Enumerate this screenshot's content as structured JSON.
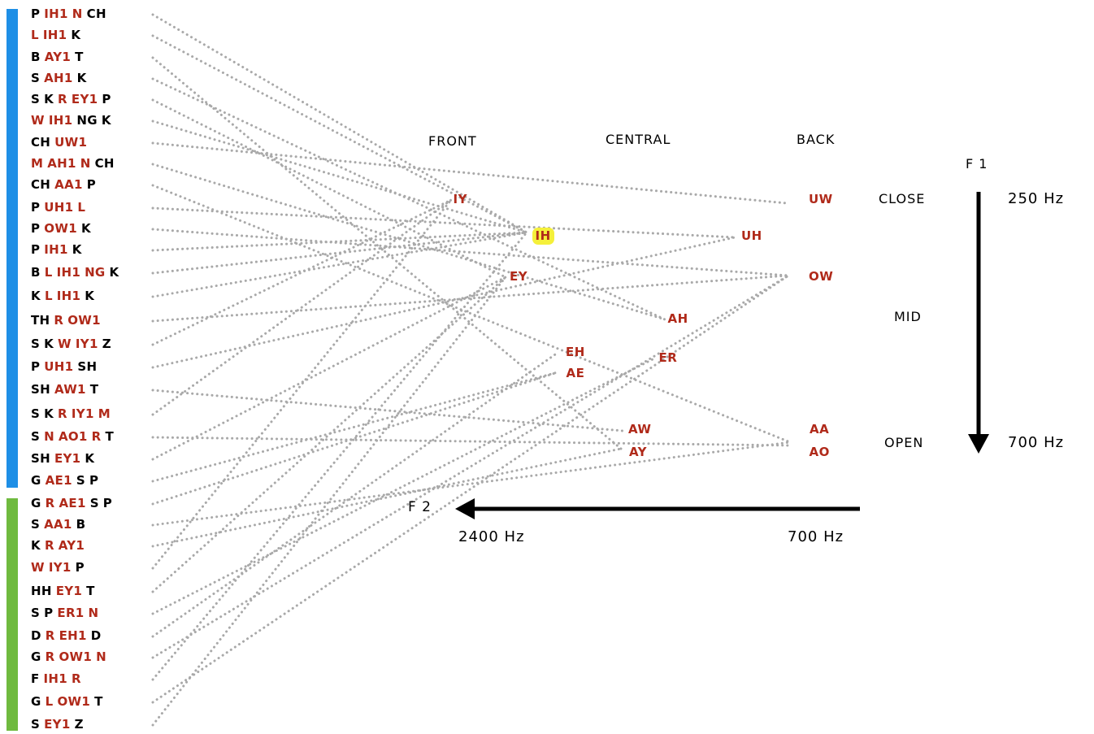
{
  "groups": [
    {
      "name": "blue",
      "color": "#1e8fe6",
      "from": 0,
      "to": 21
    },
    {
      "name": "green",
      "color": "#6fba3f",
      "from": 22,
      "to": 32
    }
  ],
  "words": [
    {
      "tokens": [
        "P",
        "IH1",
        "N",
        "CH"
      ],
      "vowels": [
        1,
        2
      ],
      "target": "IH"
    },
    {
      "tokens": [
        "L",
        "IH1",
        "K"
      ],
      "vowels": [
        0,
        1
      ],
      "target": "IH"
    },
    {
      "tokens": [
        "B",
        "AY1",
        "T"
      ],
      "vowels": [
        1
      ],
      "target": "AY"
    },
    {
      "tokens": [
        "S",
        "AH1",
        "K"
      ],
      "vowels": [
        1
      ],
      "target": "AH"
    },
    {
      "tokens": [
        "S",
        "K",
        "R",
        "EY1",
        "P"
      ],
      "vowels": [
        2,
        3
      ],
      "target": "EY"
    },
    {
      "tokens": [
        "W",
        "IH1",
        "NG",
        "K"
      ],
      "vowels": [
        0,
        1
      ],
      "target": "IH"
    },
    {
      "tokens": [
        "CH",
        "UW1"
      ],
      "vowels": [
        1
      ],
      "target": "UW"
    },
    {
      "tokens": [
        "M",
        "AH1",
        "N",
        "CH"
      ],
      "vowels": [
        0,
        1,
        2
      ],
      "target": "AH"
    },
    {
      "tokens": [
        "CH",
        "AA1",
        "P"
      ],
      "vowels": [
        1
      ],
      "target": "AA"
    },
    {
      "tokens": [
        "P",
        "UH1",
        "L"
      ],
      "vowels": [
        1,
        2
      ],
      "target": "UH"
    },
    {
      "tokens": [
        "P",
        "OW1",
        "K"
      ],
      "vowels": [
        1
      ],
      "target": "OW"
    },
    {
      "tokens": [
        "P",
        "IH1",
        "K"
      ],
      "vowels": [
        1
      ],
      "target": "IH"
    },
    {
      "tokens": [
        "B",
        "L",
        "IH1",
        "NG",
        "K"
      ],
      "vowels": [
        1,
        2,
        3
      ],
      "target": "IH"
    },
    {
      "tokens": [
        "K",
        "L",
        "IH1",
        "K"
      ],
      "vowels": [
        1,
        2
      ],
      "target": "IH"
    },
    {
      "tokens": [
        "TH",
        "R",
        "OW1"
      ],
      "vowels": [
        1,
        2
      ],
      "target": "OW"
    },
    {
      "tokens": [
        "S",
        "K",
        "W",
        "IY1",
        "Z"
      ],
      "vowels": [
        2,
        3
      ],
      "target": "IY"
    },
    {
      "tokens": [
        "P",
        "UH1",
        "SH"
      ],
      "vowels": [
        1
      ],
      "target": "UH"
    },
    {
      "tokens": [
        "SH",
        "AW1",
        "T"
      ],
      "vowels": [
        1
      ],
      "target": "AW"
    },
    {
      "tokens": [
        "S",
        "K",
        "R",
        "IY1",
        "M"
      ],
      "vowels": [
        2,
        3,
        4
      ],
      "target": "IY"
    },
    {
      "tokens": [
        "S",
        "N",
        "AO1",
        "R",
        "T"
      ],
      "vowels": [
        1,
        2,
        3
      ],
      "target": "AO"
    },
    {
      "tokens": [
        "SH",
        "EY1",
        "K"
      ],
      "vowels": [
        1
      ],
      "target": "EY"
    },
    {
      "tokens": [
        "G",
        "AE1",
        "S",
        "P"
      ],
      "vowels": [
        1
      ],
      "target": "AE"
    },
    {
      "tokens": [
        "G",
        "R",
        "AE1",
        "S",
        "P"
      ],
      "vowels": [
        1,
        2
      ],
      "target": "AE"
    },
    {
      "tokens": [
        "S",
        "AA1",
        "B"
      ],
      "vowels": [
        1
      ],
      "target": "AA"
    },
    {
      "tokens": [
        "K",
        "R",
        "AY1"
      ],
      "vowels": [
        1,
        2
      ],
      "target": "AY"
    },
    {
      "tokens": [
        "W",
        "IY1",
        "P"
      ],
      "vowels": [
        0,
        1
      ],
      "target": "IY"
    },
    {
      "tokens": [
        "HH",
        "EY1",
        "T"
      ],
      "vowels": [
        1
      ],
      "target": "EY"
    },
    {
      "tokens": [
        "S",
        "P",
        "ER1",
        "N"
      ],
      "vowels": [
        2,
        3
      ],
      "target": "ER"
    },
    {
      "tokens": [
        "D",
        "R",
        "EH1",
        "D"
      ],
      "vowels": [
        1,
        2
      ],
      "target": "EH"
    },
    {
      "tokens": [
        "G",
        "R",
        "OW1",
        "N"
      ],
      "vowels": [
        1,
        2,
        3
      ],
      "target": "OW"
    },
    {
      "tokens": [
        "F",
        "IH1",
        "R"
      ],
      "vowels": [
        1,
        2
      ],
      "target": "IH"
    },
    {
      "tokens": [
        "G",
        "L",
        "OW1",
        "T"
      ],
      "vowels": [
        1,
        2
      ],
      "target": "OW"
    },
    {
      "tokens": [
        "S",
        "EY1",
        "Z"
      ],
      "vowels": [
        1
      ],
      "target": "EY"
    }
  ],
  "vowels": [
    {
      "label": "IY",
      "highlight": false
    },
    {
      "label": "IH",
      "highlight": true
    },
    {
      "label": "EY",
      "highlight": false
    },
    {
      "label": "EH",
      "highlight": false
    },
    {
      "label": "AE",
      "highlight": false
    },
    {
      "label": "AH",
      "highlight": false
    },
    {
      "label": "ER",
      "highlight": false
    },
    {
      "label": "AW",
      "highlight": false
    },
    {
      "label": "AY",
      "highlight": false
    },
    {
      "label": "UW",
      "highlight": false
    },
    {
      "label": "UH",
      "highlight": false
    },
    {
      "label": "OW",
      "highlight": false
    },
    {
      "label": "AA",
      "highlight": false
    },
    {
      "label": "AO",
      "highlight": false
    }
  ],
  "axes": {
    "front": "FRONT",
    "central": "CENTRAL",
    "back": "BACK",
    "f1_label": "F 1",
    "f1_top": "250 Hz",
    "f1_bottom": "700 Hz",
    "close": "CLOSE",
    "mid": "MID",
    "open": "OPEN",
    "f2_label": "F 2",
    "f2_left": "2400 Hz",
    "f2_right": "700 Hz"
  },
  "colors": {
    "vowel": "#b02a1a",
    "consonant": "#000000",
    "connector": "#a9a9a9",
    "highlight": "#f5f03a"
  }
}
